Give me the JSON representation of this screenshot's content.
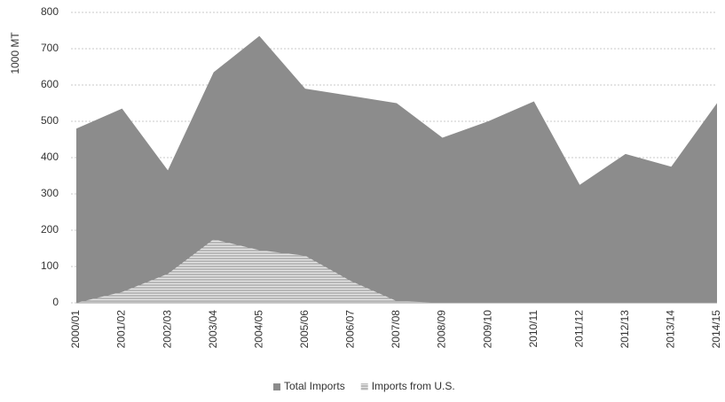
{
  "chart_data": {
    "type": "area",
    "y_label": "1000 MT",
    "categories": [
      "2000/01",
      "2001/02",
      "2002/03",
      "2003/04",
      "2004/05",
      "2005/06",
      "2006/07",
      "2007/08",
      "2008/09",
      "2009/10",
      "2010/11",
      "2011/12",
      "2012/13",
      "2013/14",
      "2014/15"
    ],
    "series": [
      {
        "name": "Total Imports",
        "color": "#8c8c8c",
        "values": [
          480,
          535,
          365,
          635,
          735,
          590,
          570,
          550,
          455,
          500,
          555,
          325,
          410,
          375,
          550
        ]
      },
      {
        "name": "Imports from U.S.",
        "color": "#c4c4c4",
        "values": [
          0,
          30,
          80,
          175,
          145,
          130,
          60,
          5,
          0,
          0,
          0,
          0,
          0,
          0,
          0
        ]
      }
    ],
    "ylim": [
      0,
      800
    ],
    "yticks": [
      0,
      100,
      200,
      300,
      400,
      500,
      600,
      700,
      800
    ],
    "grid": true,
    "legend": "bottom"
  }
}
